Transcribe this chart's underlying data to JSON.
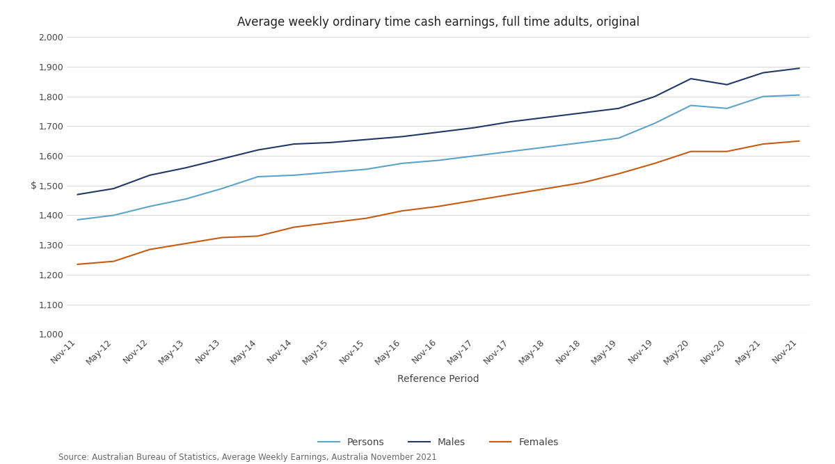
{
  "title": "Average weekly ordinary time cash earnings, full time adults, original",
  "xlabel": "Reference Period",
  "ylabel": "$",
  "source_text": "Source: Australian Bureau of Statistics, Average Weekly Earnings, Australia November 2021",
  "x_labels": [
    "Nov-11",
    "May-12",
    "Nov-12",
    "May-13",
    "Nov-13",
    "May-14",
    "Nov-14",
    "May-15",
    "Nov-15",
    "May-16",
    "Nov-16",
    "May-17",
    "Nov-17",
    "May-18",
    "Nov-18",
    "May-19",
    "Nov-19",
    "May-20",
    "Nov-20",
    "May-21",
    "Nov-21"
  ],
  "persons": [
    1385,
    1400,
    1430,
    1455,
    1490,
    1530,
    1535,
    1545,
    1555,
    1575,
    1585,
    1600,
    1615,
    1630,
    1645,
    1660,
    1710,
    1770,
    1760,
    1800,
    1805
  ],
  "males": [
    1470,
    1490,
    1535,
    1560,
    1590,
    1620,
    1640,
    1645,
    1655,
    1665,
    1680,
    1695,
    1715,
    1730,
    1745,
    1760,
    1800,
    1860,
    1840,
    1880,
    1895
  ],
  "females": [
    1235,
    1245,
    1285,
    1305,
    1325,
    1330,
    1360,
    1375,
    1390,
    1415,
    1430,
    1450,
    1470,
    1490,
    1510,
    1540,
    1575,
    1615,
    1615,
    1640,
    1650
  ],
  "persons_color": "#5ba3c9",
  "males_color": "#1f3864",
  "females_color": "#c55a11",
  "background_color": "#ffffff",
  "plot_bg_color": "#ffffff",
  "ylim": [
    1000,
    2000
  ],
  "yticks": [
    1000,
    1100,
    1200,
    1300,
    1400,
    1500,
    1600,
    1700,
    1800,
    1900,
    2000
  ],
  "grid_color": "#d9d9d9",
  "title_fontsize": 12,
  "axis_label_fontsize": 10,
  "tick_fontsize": 9,
  "legend_fontsize": 10,
  "source_fontsize": 8.5
}
